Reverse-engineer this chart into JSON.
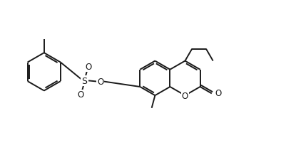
{
  "background": "#ffffff",
  "line_color": "#1a1a1a",
  "line_width": 1.4,
  "font_size": 8.5,
  "figsize": [
    3.94,
    2.26
  ],
  "dpi": 100,
  "xlim": [
    0,
    10
  ],
  "ylim": [
    0,
    5.73
  ]
}
